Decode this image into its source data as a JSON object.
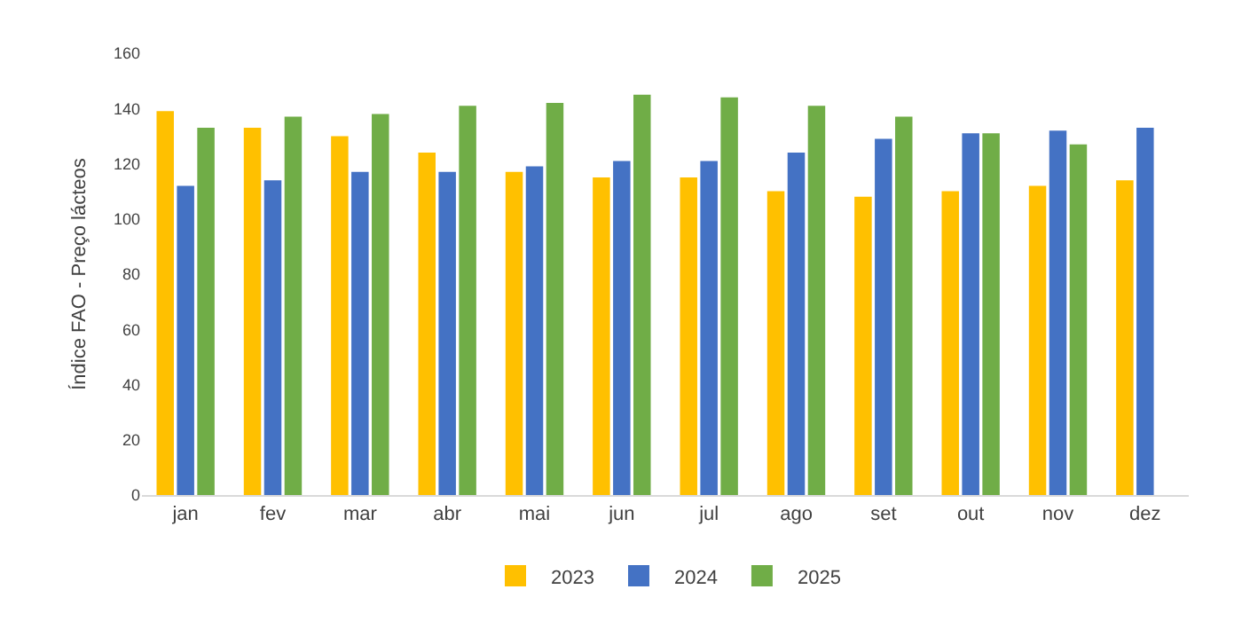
{
  "chart_data": {
    "type": "bar",
    "ylabel": "Índice FAO - Preço lácteos",
    "categories": [
      "jan",
      "fev",
      "mar",
      "abr",
      "mai",
      "jun",
      "jul",
      "ago",
      "set",
      "out",
      "nov",
      "dez"
    ],
    "series": [
      {
        "name": "2023",
        "color": "#ffc000",
        "values": [
          139,
          133,
          130,
          124,
          117,
          115,
          115,
          110,
          108,
          110,
          112,
          114
        ]
      },
      {
        "name": "2024",
        "color": "#4472c4",
        "values": [
          112,
          114,
          117,
          117,
          119,
          121,
          121,
          124,
          129,
          131,
          132,
          133
        ]
      },
      {
        "name": "2025",
        "color": "#70ad47",
        "values": [
          133,
          137,
          138,
          141,
          142,
          145,
          144,
          141,
          137,
          131,
          127,
          null
        ]
      }
    ],
    "ylim": [
      0,
      160
    ],
    "yticks": [
      0,
      20,
      40,
      60,
      80,
      100,
      120,
      140,
      160
    ],
    "grid": false,
    "legend": "bottom"
  }
}
